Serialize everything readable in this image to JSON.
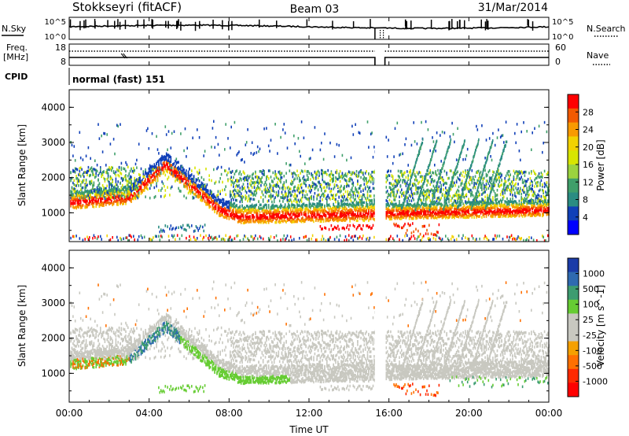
{
  "header": {
    "title": "Stokkseyri (fitACF)",
    "beam": "Beam 03",
    "date": "31/Mar/2014"
  },
  "noise_panel": {
    "left_label": "N.Sky",
    "right_label": "N.Search",
    "top_tick": "10^5",
    "bottom_tick": "10^0"
  },
  "freq_panel": {
    "left_label_line1": "Freq.",
    "left_label_line2": "[MHz]",
    "left_ticks": [
      "18",
      "8"
    ],
    "right_label": "Nave",
    "right_ticks": [
      "60",
      "0"
    ]
  },
  "cpid": {
    "label": "CPID",
    "value": "normal (fast) 151"
  },
  "x_axis": {
    "title": "Time UT",
    "ticks": [
      "00:00",
      "04:00",
      "08:00",
      "12:00",
      "16:00",
      "20:00",
      "00:00"
    ]
  },
  "chart_data": [
    {
      "type": "heatmap",
      "title": "Power",
      "ylabel": "Slant Range [km]",
      "y_ticks": [
        "4000",
        "3000",
        "2000",
        "1000"
      ],
      "ylim": [
        180,
        4500
      ],
      "xlim_hours": [
        0,
        24
      ],
      "data_gap_hours": [
        15.3,
        15.8
      ],
      "colorbar": {
        "label": "Power [dB]",
        "tick_labels": [
          "28",
          "24",
          "20",
          "16",
          "12",
          "8",
          "4"
        ],
        "colors": [
          "#ff0000",
          "#f25a00",
          "#f89a00",
          "#f2d200",
          "#d7e500",
          "#9bd33f",
          "#3f9f6a",
          "#2a8c82",
          "#1040b8",
          "#0000ff"
        ]
      }
    },
    {
      "type": "heatmap",
      "title": "Velocity",
      "ylabel": "Slant Range [km]",
      "y_ticks": [
        "4000",
        "3000",
        "2000",
        "1000"
      ],
      "ylim": [
        180,
        4500
      ],
      "xlim_hours": [
        0,
        24
      ],
      "data_gap_hours": [
        15.3,
        15.8
      ],
      "colorbar": {
        "label": "Velocity [m s^-1]",
        "tick_labels": [
          "1000",
          "500",
          "100",
          "25",
          "-25",
          "-100",
          "-500",
          "-1000"
        ],
        "colors": [
          "#1b3ca8",
          "#2f6ab0",
          "#3d9c70",
          "#66cc33",
          "#c8c8c0",
          "#c8c8c0",
          "#f5a000",
          "#ff7000",
          "#ff2a00",
          "#ff0000"
        ]
      }
    }
  ]
}
